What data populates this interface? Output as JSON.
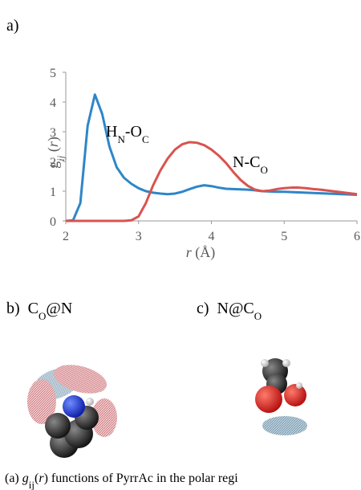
{
  "panel_a": "a)",
  "panel_b": [
    "b)",
    "C",
    "O",
    "@N"
  ],
  "panel_c": [
    "c)",
    "N@C",
    "O"
  ],
  "caption": [
    "(a) ",
    "g",
    "ij",
    "(",
    "r",
    ") functions of PyrrAc in the polar regi"
  ],
  "chart_data": {
    "type": "line",
    "ylabel": [
      "g",
      "ij",
      " (",
      "r",
      ")"
    ],
    "xlabel": [
      "r",
      " (Å)"
    ],
    "x": [
      2.0,
      2.1,
      2.2,
      2.3,
      2.4,
      2.5,
      2.6,
      2.7,
      2.8,
      2.9,
      3.0,
      3.1,
      3.2,
      3.3,
      3.4,
      3.5,
      3.6,
      3.7,
      3.8,
      3.9,
      4.0,
      4.1,
      4.2,
      4.3,
      4.4,
      4.5,
      4.6,
      4.7,
      4.8,
      4.9,
      5.0,
      5.1,
      5.2,
      5.3,
      5.4,
      5.5,
      5.6,
      5.7,
      5.8,
      5.9,
      6.0
    ],
    "series": [
      {
        "name": [
          "H",
          "N",
          "-O",
          "C"
        ],
        "color": "#2e86c8",
        "values": [
          0,
          0.02,
          0.6,
          3.2,
          4.25,
          3.6,
          2.5,
          1.8,
          1.45,
          1.25,
          1.1,
          1.0,
          0.95,
          0.92,
          0.9,
          0.92,
          0.98,
          1.07,
          1.15,
          1.2,
          1.17,
          1.12,
          1.08,
          1.07,
          1.06,
          1.05,
          1.03,
          1.0,
          0.99,
          0.98,
          0.98,
          0.97,
          0.96,
          0.95,
          0.94,
          0.93,
          0.92,
          0.91,
          0.9,
          0.89,
          0.88
        ]
      },
      {
        "name": [
          "N-C",
          "O"
        ],
        "color": "#d9534f",
        "values": [
          0,
          0,
          0,
          0,
          0,
          0,
          0,
          0,
          0,
          0.02,
          0.15,
          0.6,
          1.2,
          1.7,
          2.1,
          2.4,
          2.58,
          2.65,
          2.63,
          2.55,
          2.4,
          2.2,
          1.95,
          1.65,
          1.38,
          1.18,
          1.05,
          1.0,
          1.02,
          1.07,
          1.1,
          1.12,
          1.12,
          1.1,
          1.07,
          1.05,
          1.02,
          0.99,
          0.96,
          0.93,
          0.9
        ]
      }
    ],
    "xlim": [
      2,
      6
    ],
    "xticks": [
      2,
      3,
      4,
      5,
      6
    ],
    "ylim": [
      0,
      5
    ],
    "yticks": [
      0,
      1,
      2,
      3,
      4,
      5
    ],
    "grid": false
  }
}
